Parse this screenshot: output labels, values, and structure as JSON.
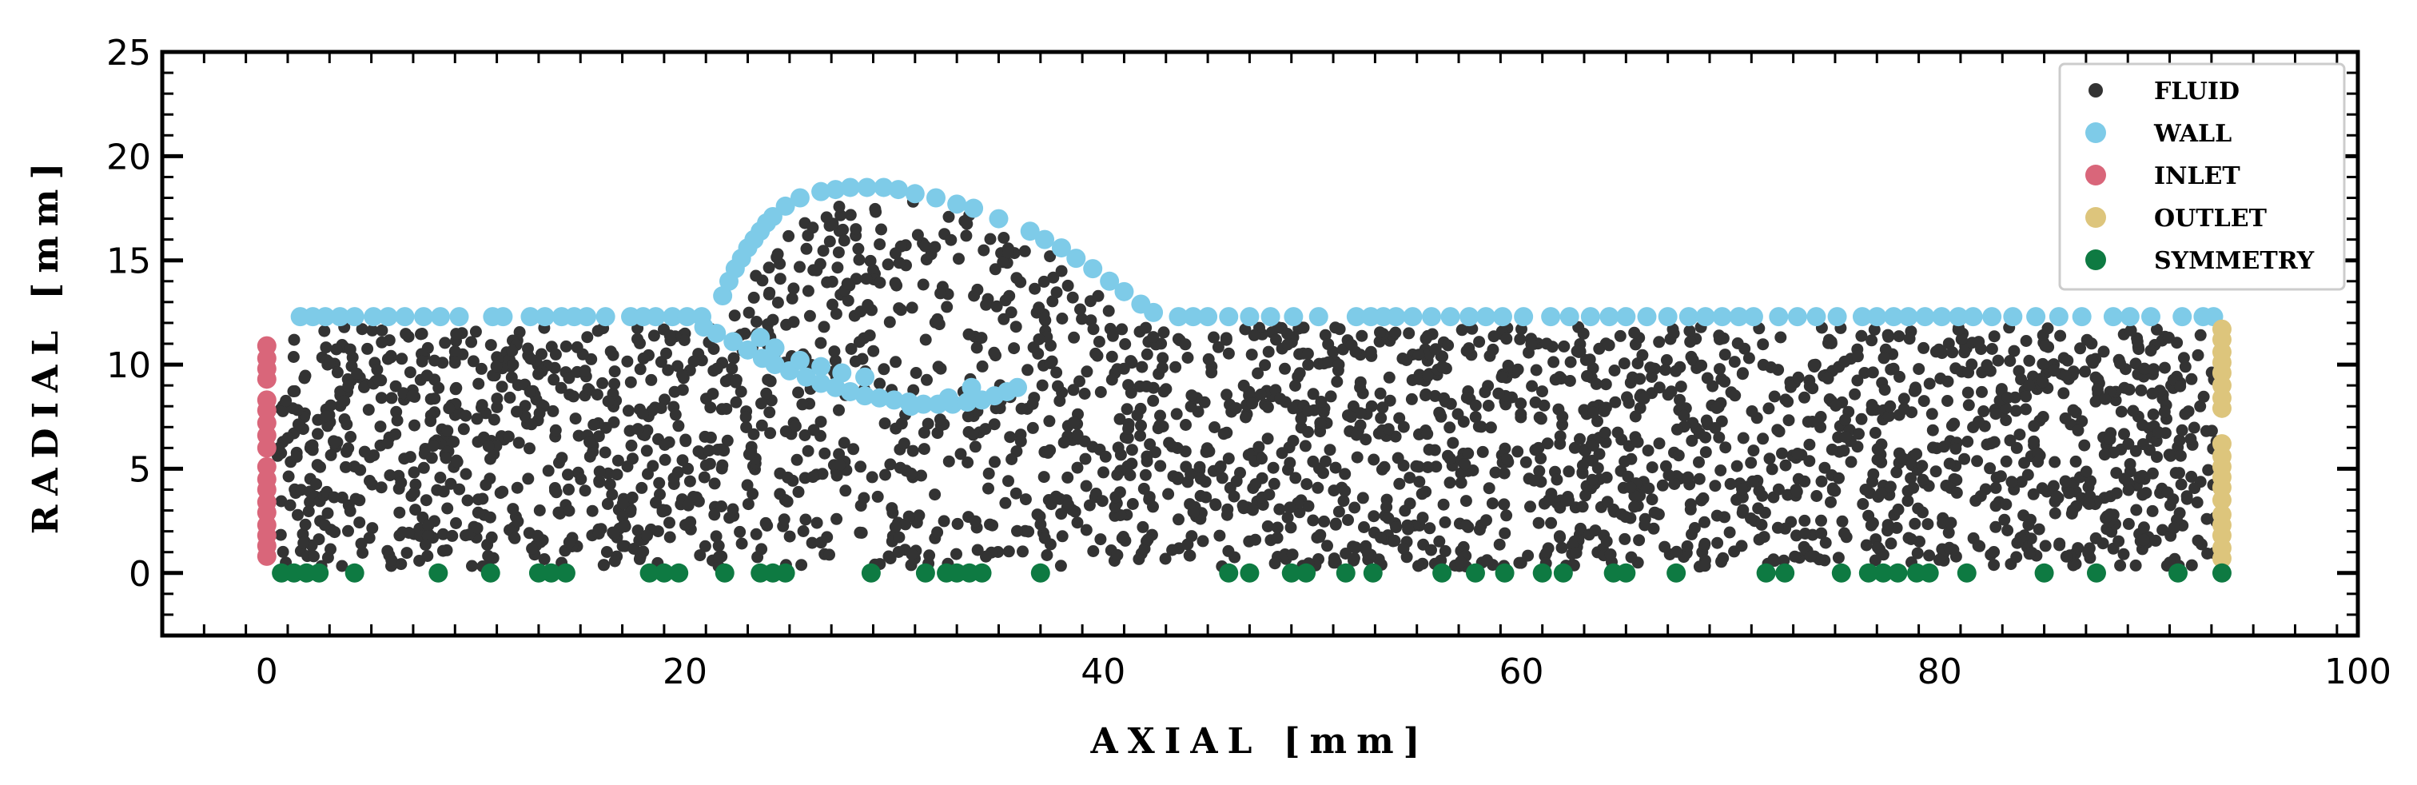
{
  "chart_data": {
    "type": "scatter",
    "title": "",
    "xlabel": "AXIAL [mm]",
    "ylabel": "RADIAL [mm]",
    "xlim": [
      -5,
      100
    ],
    "ylim": [
      -3,
      25
    ],
    "xticks": [
      0,
      20,
      40,
      60,
      80,
      100
    ],
    "yticks": [
      0,
      5,
      10,
      15,
      20,
      25
    ],
    "grid": false,
    "legend_position": "top-right",
    "series": [
      {
        "name": "FLUID",
        "color": "#333333",
        "marker": "small-circle",
        "description_points": "dense random scatter in domain x 0.5–93.5, y 0.3–11.8, plus bump region x 22–41 up to ~18"
      },
      {
        "name": "WALL",
        "color": "#7ecbe8",
        "marker": "circle"
      },
      {
        "name": "INLET",
        "color": "#d9667a",
        "marker": "circle"
      },
      {
        "name": "OUTLET",
        "color": "#ddc57c",
        "marker": "circle"
      },
      {
        "name": "SYMMETRY",
        "color": "#0e7a42",
        "marker": "circle"
      }
    ],
    "wall_top_x": [
      1.6,
      2.2,
      2.8,
      3.5,
      4.2,
      5.1,
      5.8,
      6.6,
      7.5,
      8.3,
      9.2,
      10.8,
      11.3,
      12.6,
      13.3,
      14.1,
      14.7,
      15.3,
      16.2,
      17.4,
      18.0,
      18.6,
      19.4,
      20.1,
      20.8,
      43.6,
      44.3,
      45.0,
      46.0,
      47.0,
      48.0,
      49.1,
      50.3,
      52.1,
      52.8,
      53.4,
      54.0,
      54.8,
      55.7,
      56.6,
      57.5,
      58.3,
      59.1,
      60.1,
      61.4,
      62.3,
      63.3,
      64.2,
      65.0,
      66.0,
      67.0,
      68.0,
      68.8,
      69.6,
      70.4,
      71.1,
      72.3,
      73.2,
      74.1,
      75.1,
      76.3,
      77.0,
      77.8,
      78.5,
      79.3,
      80.1,
      80.9,
      81.6,
      82.5,
      83.5,
      84.6,
      85.7,
      86.8,
      88.3,
      89.1,
      90.1,
      91.6,
      92.6,
      93.1
    ],
    "wall_bump_upper": [
      [
        21.8,
        13.3
      ],
      [
        22.1,
        14.0
      ],
      [
        22.4,
        14.6
      ],
      [
        22.7,
        15.1
      ],
      [
        23.0,
        15.6
      ],
      [
        23.3,
        16.0
      ],
      [
        23.6,
        16.4
      ],
      [
        23.9,
        16.8
      ],
      [
        24.2,
        17.1
      ],
      [
        24.8,
        17.6
      ],
      [
        25.5,
        18.0
      ],
      [
        26.5,
        18.3
      ],
      [
        27.2,
        18.4
      ],
      [
        27.9,
        18.5
      ],
      [
        28.7,
        18.5
      ],
      [
        29.5,
        18.5
      ],
      [
        30.2,
        18.4
      ],
      [
        31.0,
        18.2
      ],
      [
        32.0,
        18.0
      ],
      [
        33.0,
        17.7
      ],
      [
        33.8,
        17.5
      ],
      [
        35.0,
        17.0
      ],
      [
        36.5,
        16.4
      ],
      [
        37.2,
        16.0
      ],
      [
        38.0,
        15.6
      ],
      [
        38.7,
        15.1
      ],
      [
        39.5,
        14.6
      ],
      [
        40.3,
        14.0
      ],
      [
        41.0,
        13.5
      ],
      [
        41.8,
        12.9
      ],
      [
        42.4,
        12.5
      ]
    ],
    "wall_bump_lower": [
      [
        20.9,
        11.8
      ],
      [
        21.5,
        11.5
      ],
      [
        22.3,
        11.1
      ],
      [
        23.0,
        10.7
      ],
      [
        23.7,
        10.3
      ],
      [
        24.3,
        10.0
      ],
      [
        25.0,
        9.7
      ],
      [
        25.8,
        9.4
      ],
      [
        26.5,
        9.1
      ],
      [
        27.2,
        8.9
      ],
      [
        27.9,
        8.7
      ],
      [
        28.6,
        8.5
      ],
      [
        29.3,
        8.4
      ],
      [
        30.0,
        8.3
      ],
      [
        30.7,
        8.2
      ],
      [
        31.4,
        8.1
      ],
      [
        32.1,
        8.1
      ],
      [
        32.8,
        8.1
      ],
      [
        33.5,
        8.2
      ],
      [
        34.2,
        8.3
      ],
      [
        34.8,
        8.5
      ],
      [
        35.4,
        8.7
      ],
      [
        35.9,
        8.9
      ],
      [
        23.6,
        11.3
      ],
      [
        24.3,
        10.8
      ],
      [
        25.5,
        10.2
      ],
      [
        26.5,
        9.9
      ],
      [
        27.5,
        9.6
      ],
      [
        28.6,
        9.4
      ],
      [
        30.8,
        8.0
      ],
      [
        32.6,
        8.4
      ],
      [
        33.7,
        8.9
      ]
    ],
    "inlet_y": [
      0.8,
      1.3,
      1.8,
      2.3,
      2.9,
      3.4,
      4.0,
      4.5,
      5.1,
      6.0,
      6.6,
      7.2,
      7.8,
      8.3,
      9.3,
      9.8,
      10.3,
      10.9
    ],
    "outlet_y": [
      0.7,
      1.2,
      1.8,
      2.3,
      2.8,
      3.5,
      4.1,
      4.6,
      5.1,
      5.6,
      6.2,
      7.9,
      8.4,
      9.0,
      9.6,
      10.1,
      10.6,
      11.2,
      11.7
    ],
    "symmetry_x": [
      0.7,
      1.3,
      1.9,
      2.5,
      4.2,
      8.2,
      10.7,
      13.0,
      13.6,
      14.3,
      18.3,
      19.0,
      19.7,
      21.9,
      23.6,
      24.2,
      24.8,
      28.9,
      31.5,
      32.5,
      33.0,
      33.6,
      34.2,
      37.0,
      46.0,
      47.0,
      49.0,
      49.7,
      51.6,
      52.9,
      56.2,
      57.8,
      59.2,
      61.0,
      62.0,
      64.4,
      65.0,
      67.4,
      71.7,
      72.6,
      75.3,
      76.6,
      77.3,
      78.0,
      78.9,
      79.5,
      81.3,
      85.0,
      87.5,
      91.4,
      93.5
    ]
  },
  "legend": {
    "items": [
      {
        "label": "FLUID",
        "color": "#333333",
        "size": "small"
      },
      {
        "label": "WALL",
        "color": "#7ecbe8",
        "size": "large"
      },
      {
        "label": "INLET",
        "color": "#d9667a",
        "size": "large"
      },
      {
        "label": "OUTLET",
        "color": "#ddc57c",
        "size": "large"
      },
      {
        "label": "SYMMETRY",
        "color": "#0e7a42",
        "size": "large"
      }
    ]
  },
  "axes": {
    "xlabel": "AXIAL [mm]",
    "ylabel": "RADIAL [mm]",
    "xtick_labels": [
      "0",
      "20",
      "40",
      "60",
      "80",
      "100"
    ],
    "ytick_labels": [
      "0",
      "5",
      "10",
      "15",
      "20",
      "25"
    ]
  }
}
